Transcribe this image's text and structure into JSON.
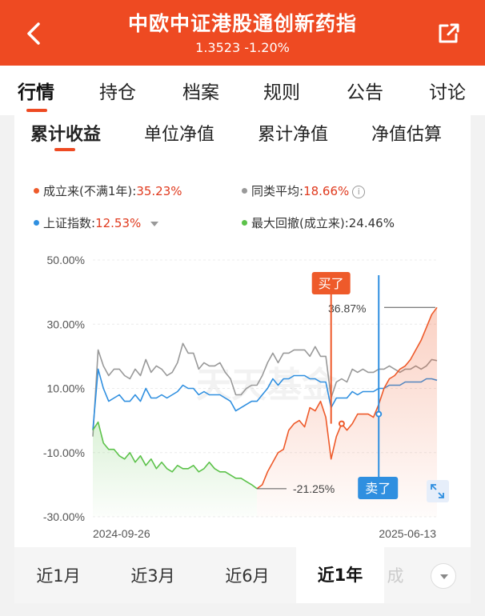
{
  "header": {
    "title": "中欧中证港股通创新药指",
    "subtitle": "1.3523 -1.20%",
    "color": "#ee4a22"
  },
  "tabs": [
    "行情",
    "持仓",
    "档案",
    "规则",
    "公告",
    "讨论"
  ],
  "subtabs": [
    "累计收益",
    "单位净值",
    "累计净值",
    "净值估算"
  ],
  "legend": {
    "fund": {
      "label": "成立来(不满1年):",
      "value": "35.23%",
      "color": "#ee5a2a"
    },
    "peer": {
      "label": "同类平均:",
      "value": "18.66%",
      "color": "#999999"
    },
    "index": {
      "label": "上证指数:",
      "value": "12.53%",
      "color": "#2f8fe0"
    },
    "drawdown": {
      "label": "最大回撤(成立来):",
      "value": "24.46%",
      "color": "#5cc24a"
    }
  },
  "watermark": "天天基金",
  "chart_data": {
    "type": "line",
    "x_start": "2024-09-26",
    "x_end": "2025-06-13",
    "y_ticks": [
      "50.00%",
      "30.00%",
      "10.00%",
      "-10.00%",
      "-30.00%"
    ],
    "ylim": [
      -30,
      50
    ],
    "annotations": {
      "buy_label": "买了",
      "sell_label": "卖了",
      "max_label": "36.87%",
      "min_label": "-21.25%"
    },
    "series": [
      {
        "color": "#999999",
        "values": [
          -5,
          22,
          17,
          14,
          16,
          16,
          14,
          13,
          16,
          14,
          19,
          15,
          17,
          16,
          14,
          15,
          18,
          24,
          21,
          21,
          16,
          18,
          17,
          17,
          18,
          15,
          13,
          8,
          8,
          10,
          11,
          11,
          14,
          18,
          21,
          18,
          21,
          21,
          22,
          22,
          22,
          20,
          23,
          20,
          20,
          7,
          12,
          13,
          12,
          16,
          15,
          16,
          15,
          15,
          16,
          16,
          17,
          16,
          15,
          16,
          16,
          17,
          16,
          17,
          19,
          18.66
        ]
      },
      {
        "color": "#2f8fe0",
        "values": [
          -3,
          16,
          10,
          6,
          7,
          8,
          6,
          6,
          8,
          6,
          10,
          7,
          7,
          8,
          7,
          8,
          9,
          11,
          10,
          10,
          8,
          9,
          8,
          8,
          8,
          7,
          6,
          3,
          4,
          5,
          6,
          6,
          8,
          10,
          13,
          11,
          13,
          13,
          14,
          14,
          14,
          13,
          13,
          12,
          12,
          4,
          7,
          7,
          7,
          9,
          8,
          9,
          9,
          9,
          10,
          10,
          11,
          11,
          11,
          12,
          12,
          12,
          12,
          13,
          13,
          12.53
        ]
      },
      {
        "color": "#ee5a2a",
        "values": [
          null,
          null,
          null,
          null,
          null,
          null,
          null,
          null,
          null,
          null,
          null,
          null,
          null,
          null,
          null,
          null,
          null,
          null,
          null,
          null,
          null,
          null,
          null,
          null,
          null,
          null,
          null,
          null,
          null,
          null,
          null,
          -21.25,
          -20,
          -16,
          -13,
          -10,
          -9,
          -3,
          -1,
          0,
          -2,
          4,
          3,
          6,
          1,
          -12,
          -5,
          -1,
          -3,
          -1,
          2,
          2,
          2,
          1,
          5,
          10,
          13,
          14,
          16,
          17,
          19,
          22,
          25,
          29,
          33,
          35.23
        ]
      },
      {
        "color": "#5cc24a",
        "values": [
          -3,
          -0.5,
          -7,
          -9,
          -9,
          -11,
          -12,
          -10,
          -13,
          -11,
          -14,
          -12,
          -15,
          -13,
          -15,
          -16,
          -14,
          -15,
          -15,
          -14,
          -16,
          -15,
          -13,
          -15,
          -16,
          -16,
          -17,
          -18,
          -18,
          -19,
          -20,
          -21.25
        ]
      }
    ]
  },
  "periods": [
    "近1月",
    "近3月",
    "近6月",
    "近1年",
    "成"
  ]
}
